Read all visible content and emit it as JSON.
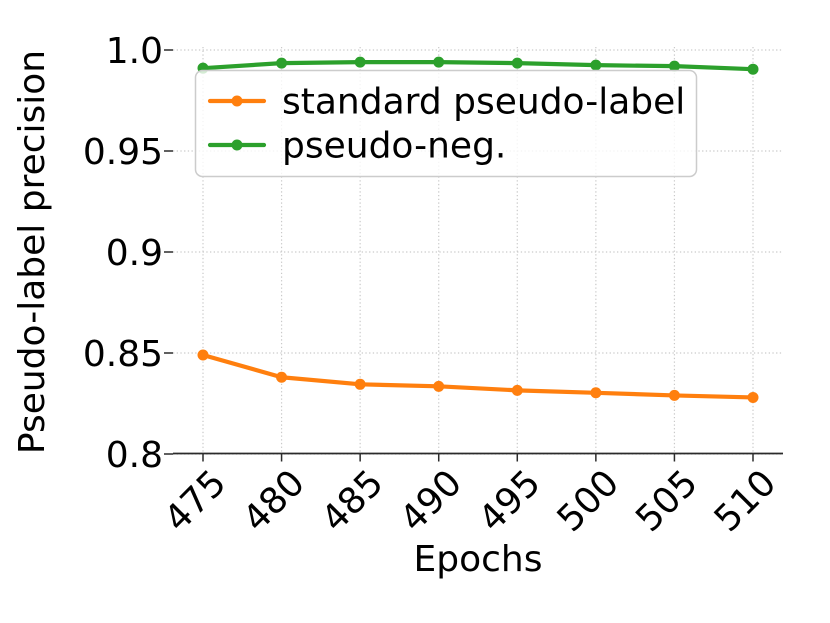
{
  "figure": {
    "background": "#ffffff",
    "grid_color": "#c9c9c9",
    "spine_color": "#2b2b2b",
    "text_color": "#000000",
    "legend_border_color": "#cccccc",
    "legend_fill": "#ffffff"
  },
  "chart_data": {
    "type": "line",
    "title": "",
    "xlabel": "Epochs",
    "ylabel": "Pseudo-label precision",
    "x": [
      475,
      480,
      485,
      490,
      495,
      500,
      505,
      510
    ],
    "xticks": [
      475,
      480,
      485,
      490,
      495,
      500,
      505,
      510
    ],
    "xtick_labels": [
      "475",
      "480",
      "485",
      "490",
      "495",
      "500",
      "505",
      "510"
    ],
    "yticks": [
      0.8,
      0.85,
      0.9,
      0.95,
      1.0
    ],
    "ytick_labels": [
      "0.8",
      "0.85",
      "0.9",
      "0.95",
      "1.0"
    ],
    "xlim": [
      473.1,
      511.9
    ],
    "ylim": [
      0.8,
      1.0025
    ],
    "grid": true,
    "grid_style": "dotted",
    "legend_position": "upper-left",
    "series": [
      {
        "name": "standard pseudo-label",
        "color": "#ff7f0e",
        "marker": "circle",
        "values": [
          0.849,
          0.838,
          0.8345,
          0.8335,
          0.8315,
          0.8303,
          0.829,
          0.828
        ]
      },
      {
        "name": "pseudo-neg.",
        "color": "#2ca02c",
        "marker": "circle",
        "values": [
          0.991,
          0.9935,
          0.994,
          0.994,
          0.9935,
          0.9925,
          0.992,
          0.9905
        ]
      }
    ]
  }
}
